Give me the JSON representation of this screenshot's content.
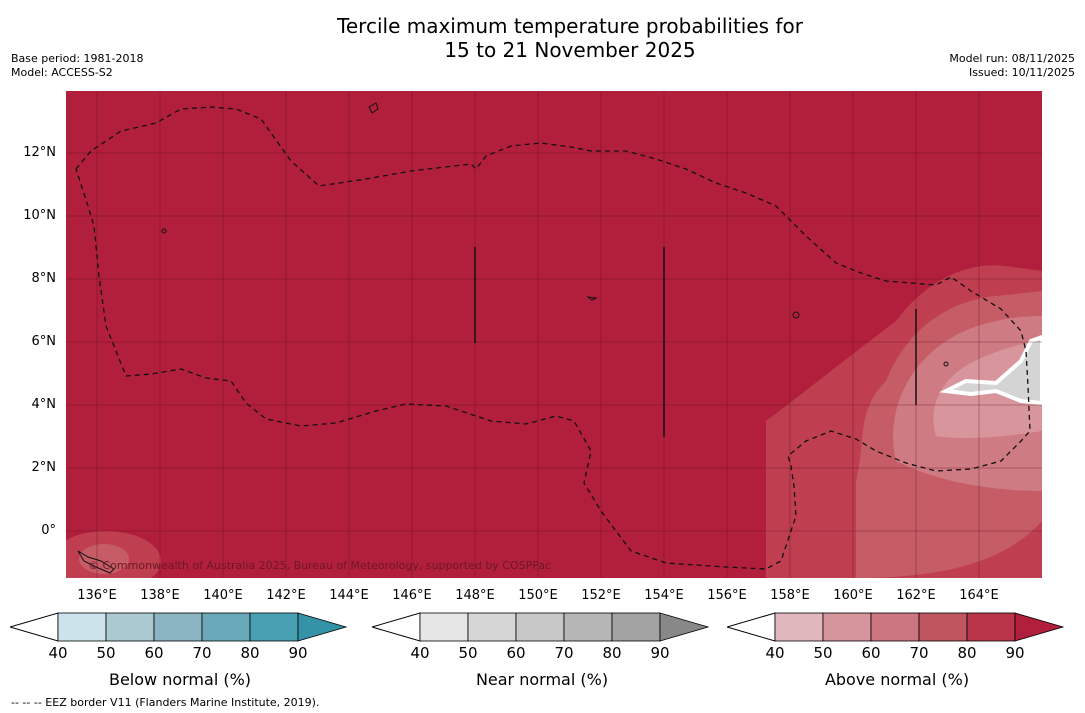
{
  "title_line1": "Tercile maximum temperature probabilities for",
  "title_line2": "15 to 21 November 2025",
  "base_period": "Base period: 1981-2018",
  "model": "Model: ACCESS-S2",
  "model_run": "Model run: 08/11/2025",
  "issued": "Issued: 10/11/2025",
  "lat_labels": [
    "12°N",
    "10°N",
    "8°N",
    "6°N",
    "4°N",
    "2°N",
    "0°"
  ],
  "lon_labels": [
    "136°E",
    "138°E",
    "140°E",
    "142°E",
    "144°E",
    "146°E",
    "148°E",
    "150°E",
    "152°E",
    "154°E",
    "156°E",
    "158°E",
    "160°E",
    "162°E",
    "164°E"
  ],
  "copyright": "© Commonwealth of Australia 2025, Bureau of Meteorology, supported by COSPPac",
  "colorbars": [
    {
      "label": "Below normal (%)",
      "ticks": [
        "40",
        "50",
        "60",
        "70",
        "80",
        "90"
      ],
      "colors": [
        "#cde3ea",
        "#aac9d1",
        "#8bb5c2",
        "#6aa9b9",
        "#4aa0b3",
        "#3593a8"
      ]
    },
    {
      "label": "Near normal (%)",
      "ticks": [
        "40",
        "50",
        "60",
        "70",
        "80",
        "90"
      ],
      "colors": [
        "#e6e6e6",
        "#d6d6d6",
        "#c8c8c8",
        "#b6b6b6",
        "#a2a2a2",
        "#888888"
      ]
    },
    {
      "label": "Above normal (%)",
      "ticks": [
        "40",
        "50",
        "60",
        "70",
        "80",
        "90"
      ],
      "colors": [
        "#e0b7bd",
        "#d6949c",
        "#cb7680",
        "#c05560",
        "#b8354a",
        "#b21f3c"
      ]
    }
  ],
  "footnote": "--  --  -- EEZ border V11 (Flanders Marine Institute, 2019).",
  "colors": {
    "above_90": "#b21f3c",
    "above_80": "#bf3f51",
    "above_70": "#c65c66",
    "above_60": "#cf7b84",
    "above_50": "#d9959c",
    "near_40": "#d4d4d4"
  }
}
